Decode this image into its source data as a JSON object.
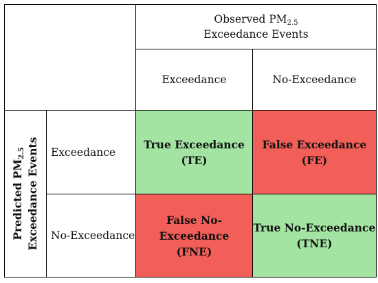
{
  "colors": {
    "true_cell": "#a3e4a3",
    "false_cell": "#f25e58",
    "border": "#000000"
  },
  "observed_header": {
    "prefix": "Observed PM",
    "subscript": "2.5",
    "line2": "Exceedance Events"
  },
  "predicted_header": {
    "prefix": "Predicted PM",
    "subscript": "2.5",
    "line2": "Exceedance Events"
  },
  "columns": [
    {
      "label": "Exceedance"
    },
    {
      "label": "No-Exceedance"
    }
  ],
  "rows": [
    {
      "label": "Exceedance"
    },
    {
      "label": "No-Exceedance"
    }
  ],
  "cells": {
    "te": {
      "title": "True Exceedance",
      "abbr": "(TE)"
    },
    "fe": {
      "title": "False Exceedance",
      "abbr": "(FE)"
    },
    "fne": {
      "title": "False No-Exceedance",
      "abbr": "(FNE)"
    },
    "tne": {
      "title": "True No-Exceedance",
      "abbr": "(TNE)"
    }
  }
}
